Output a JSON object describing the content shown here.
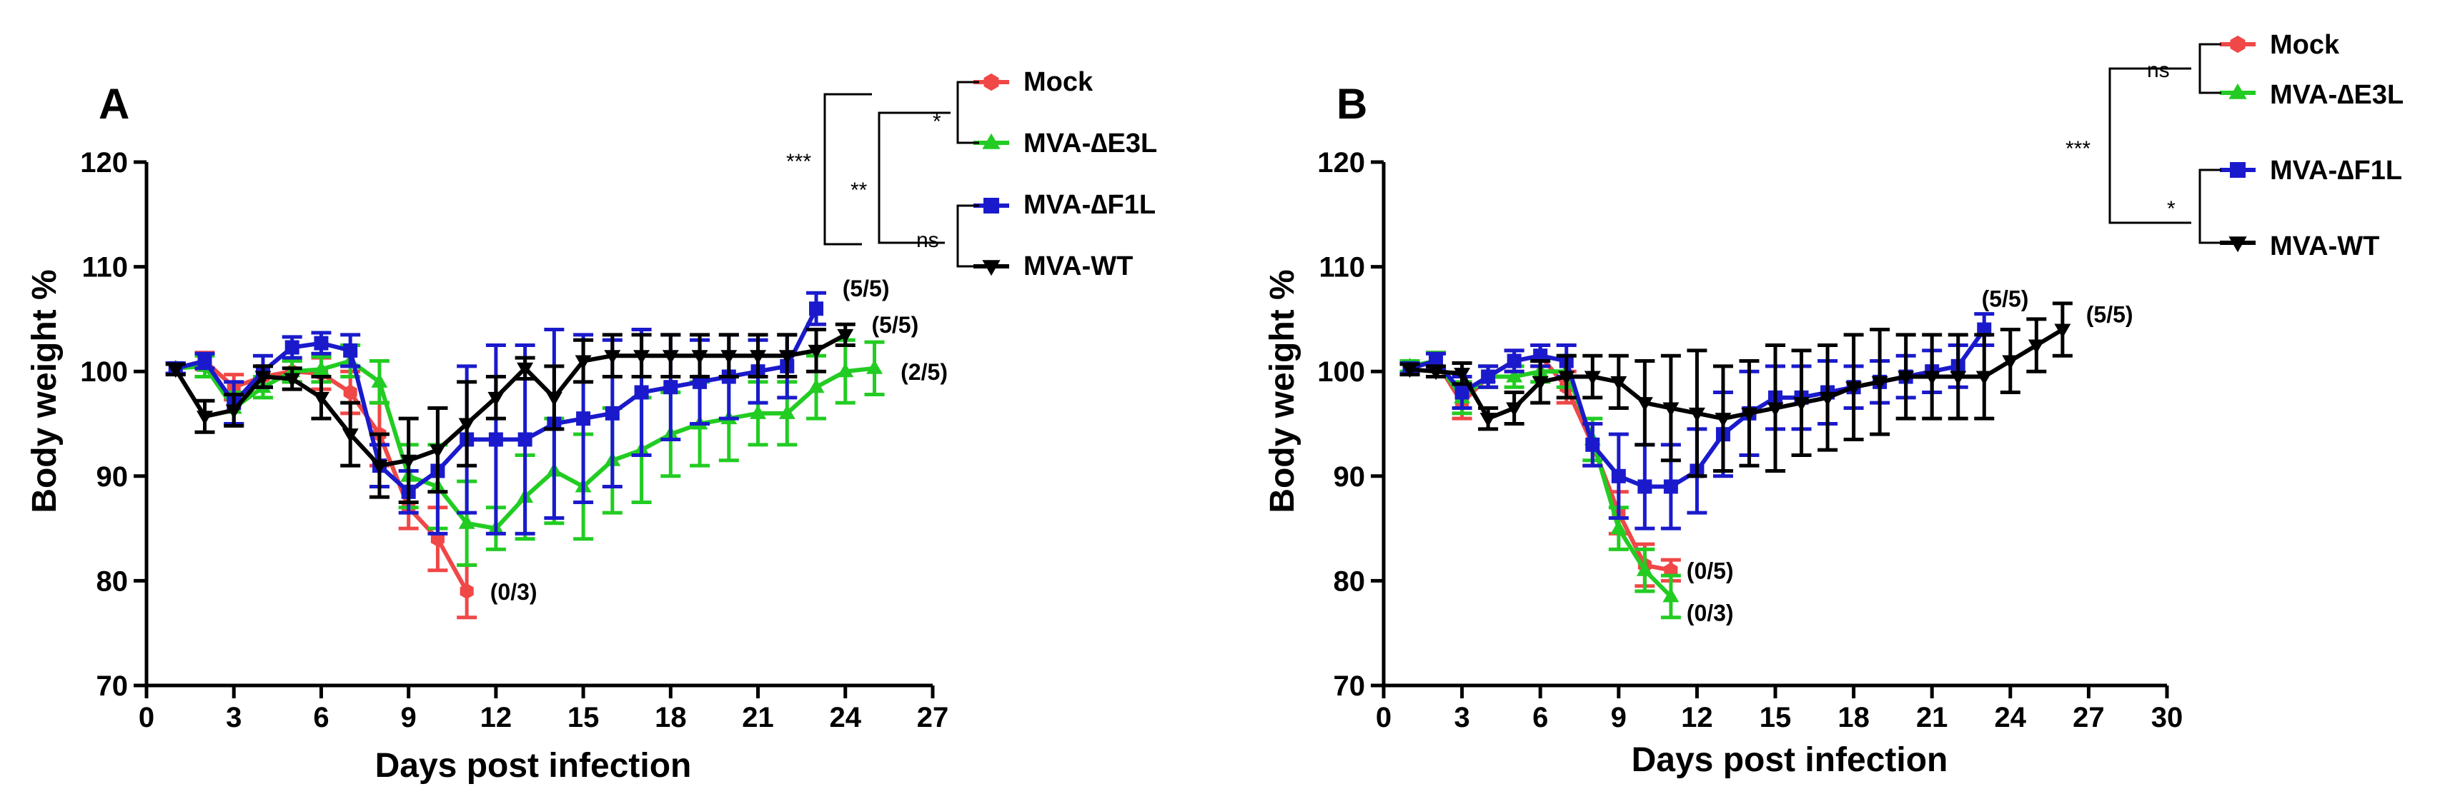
{
  "colors": {
    "mock": "#f04747",
    "e3l": "#22cc22",
    "f1l": "#1a1acc",
    "wt": "#000000"
  },
  "chart_data": [
    {
      "panel": "A",
      "type": "line",
      "xlabel": "Days post infection",
      "ylabel": "Body weight %",
      "xlim": [
        0,
        27
      ],
      "ylim": [
        70,
        120
      ],
      "xticks": [
        0,
        3,
        6,
        9,
        12,
        15,
        18,
        21,
        24,
        27
      ],
      "yticks": [
        70,
        80,
        90,
        100,
        110,
        120
      ],
      "series": [
        {
          "name": "Mock",
          "color": "#f04747",
          "marker": "hexagon",
          "x": [
            1,
            2,
            3,
            4,
            5,
            6,
            7,
            8,
            9,
            10,
            11
          ],
          "y": [
            100.3,
            101,
            98.5,
            99.5,
            100,
            99.8,
            98,
            94,
            87,
            84,
            79
          ],
          "err": [
            0.5,
            0.8,
            1.2,
            1,
            1,
            1.5,
            2,
            3,
            2,
            3,
            2.5
          ]
        },
        {
          "name": "MVA-∆E3L",
          "color": "#22cc22",
          "marker": "triangle-up",
          "x": [
            1,
            2,
            3,
            4,
            5,
            6,
            7,
            8,
            9,
            10,
            11,
            12,
            13,
            14,
            15,
            16,
            17,
            18,
            19,
            20,
            21,
            22,
            23,
            24,
            25
          ],
          "y": [
            100.3,
            100.5,
            96.5,
            98.5,
            100,
            100.2,
            101,
            99,
            90,
            89,
            85.5,
            85,
            88,
            90.5,
            89,
            91.5,
            92.5,
            94,
            95,
            95.5,
            96,
            96,
            98.5,
            100,
            100.3
          ],
          "err": [
            0.5,
            1,
            1.5,
            1,
            1,
            1.2,
            1.5,
            2,
            3,
            4,
            4,
            2,
            4,
            5,
            5,
            5,
            5,
            4,
            4,
            4,
            3,
            3,
            3,
            3,
            2.5
          ]
        },
        {
          "name": "MVA-∆F1L",
          "color": "#1a1acc",
          "marker": "square",
          "x": [
            1,
            2,
            3,
            4,
            5,
            6,
            7,
            8,
            9,
            10,
            11,
            12,
            13,
            14,
            15,
            16,
            17,
            18,
            19,
            20,
            21,
            22,
            23
          ],
          "y": [
            100.3,
            101,
            97,
            100,
            102.3,
            102.7,
            102,
            91,
            88.5,
            90.5,
            93.5,
            93.5,
            93.5,
            95,
            95.5,
            96,
            98,
            98.5,
            99,
            99.5,
            100,
            100.5,
            106
          ],
          "err": [
            0.5,
            0.7,
            2,
            1.5,
            1,
            1,
            1.5,
            2,
            2,
            6,
            7,
            9,
            9,
            9,
            8,
            7,
            6,
            5,
            4,
            4,
            3,
            3,
            1.5
          ]
        },
        {
          "name": "MVA-WT",
          "color": "#000000",
          "marker": "triangle-down",
          "x": [
            1,
            2,
            3,
            4,
            5,
            6,
            7,
            8,
            9,
            10,
            11,
            12,
            13,
            14,
            15,
            16,
            17,
            18,
            19,
            20,
            21,
            22,
            23,
            24
          ],
          "y": [
            100.2,
            95.7,
            96.3,
            99.5,
            99.3,
            97.5,
            94,
            91,
            91.5,
            92.5,
            95,
            97.5,
            100.3,
            97.5,
            101,
            101.5,
            101.5,
            101.5,
            101.5,
            101.5,
            101.5,
            101.5,
            102,
            103.5
          ],
          "err": [
            0.5,
            1.5,
            1.5,
            1,
            1,
            2,
            3,
            3,
            4,
            4,
            4,
            2,
            1,
            3,
            2,
            2,
            2,
            2,
            2,
            2,
            2,
            2,
            2,
            1
          ]
        }
      ],
      "annotations": [
        {
          "text": "(0/3)",
          "x": 11.8,
          "y": 79
        },
        {
          "text": "(5/5)",
          "x": 23.9,
          "y": 108
        },
        {
          "text": "(5/5)",
          "x": 24.9,
          "y": 104.5
        },
        {
          "text": "(2/5)",
          "x": 25.9,
          "y": 100
        }
      ],
      "legend": {
        "position": "top-right",
        "entries": [
          "Mock",
          "MVA-∆E3L",
          "MVA-∆F1L",
          "MVA-WT"
        ]
      },
      "significance": [
        "*",
        "**",
        "***",
        "ns"
      ]
    },
    {
      "panel": "B",
      "type": "line",
      "xlabel": "Days post infection",
      "ylabel": "Body weight %",
      "xlim": [
        0,
        30
      ],
      "ylim": [
        70,
        120
      ],
      "xticks": [
        0,
        3,
        6,
        9,
        12,
        15,
        18,
        21,
        24,
        27,
        30
      ],
      "yticks": [
        70,
        80,
        90,
        100,
        110,
        120
      ],
      "series": [
        {
          "name": "Mock",
          "color": "#f04747",
          "marker": "hexagon",
          "x": [
            1,
            2,
            3,
            4,
            5,
            6,
            7,
            8,
            9,
            10,
            11
          ],
          "y": [
            100.3,
            101,
            97,
            99.5,
            101,
            101.5,
            98.5,
            93,
            86.5,
            81.5,
            81
          ],
          "err": [
            0.5,
            0.8,
            1.5,
            1,
            1,
            1,
            1.5,
            2,
            2,
            2,
            1
          ]
        },
        {
          "name": "MVA-∆E3L",
          "color": "#22cc22",
          "marker": "triangle-up",
          "x": [
            1,
            2,
            3,
            4,
            5,
            6,
            7,
            8,
            9,
            10,
            11
          ],
          "y": [
            100.5,
            101,
            97.5,
            99.5,
            99.5,
            100,
            100,
            93.5,
            85,
            81,
            78.5
          ],
          "err": [
            0.5,
            0.8,
            1.5,
            1,
            1,
            1,
            1.5,
            2,
            2,
            2,
            2
          ]
        },
        {
          "name": "MVA-∆F1L",
          "color": "#1a1acc",
          "marker": "square",
          "x": [
            1,
            2,
            3,
            4,
            5,
            6,
            7,
            8,
            9,
            10,
            11,
            12,
            13,
            14,
            15,
            16,
            17,
            18,
            19,
            20,
            21,
            22,
            23
          ],
          "y": [
            100.3,
            101,
            98,
            99.5,
            101,
            101.5,
            101,
            93,
            90,
            89,
            89,
            90.5,
            94,
            96,
            97.5,
            97.5,
            98,
            98.5,
            99,
            99.5,
            100,
            100.5,
            104
          ],
          "err": [
            0.5,
            0.7,
            1.5,
            1,
            1,
            1,
            1.5,
            2,
            4,
            4,
            4,
            4,
            4,
            4,
            3,
            3,
            3,
            2,
            2,
            2,
            2,
            2,
            1.5
          ]
        },
        {
          "name": "MVA-WT",
          "color": "#000000",
          "marker": "triangle-down",
          "x": [
            1,
            2,
            3,
            4,
            5,
            6,
            7,
            8,
            9,
            10,
            11,
            12,
            13,
            14,
            15,
            16,
            17,
            18,
            19,
            20,
            21,
            22,
            23,
            24,
            25,
            26
          ],
          "y": [
            100.2,
            100,
            99.8,
            95.5,
            96.5,
            99,
            99.5,
            99.5,
            99,
            97,
            96.5,
            96,
            95.5,
            96,
            96.5,
            97,
            97.5,
            98.5,
            99,
            99.5,
            99.5,
            99.5,
            99.5,
            101,
            102.5,
            104
          ],
          "err": [
            0.5,
            0.5,
            1,
            1,
            1.5,
            2,
            2,
            2,
            2.5,
            4,
            5,
            6,
            5,
            5,
            6,
            5,
            5,
            5,
            5,
            4,
            4,
            4,
            4,
            3,
            2.5,
            2.5
          ]
        }
      ],
      "annotations": [
        {
          "text": "(0/5)",
          "x": 11.6,
          "y": 81
        },
        {
          "text": "(0/3)",
          "x": 11.6,
          "y": 77
        },
        {
          "text": "(5/5)",
          "x": 22.9,
          "y": 107
        },
        {
          "text": "(5/5)",
          "x": 26.9,
          "y": 105.5
        }
      ],
      "legend": {
        "position": "top-right",
        "entries": [
          "Mock",
          "MVA-∆E3L",
          "MVA-∆F1L",
          "MVA-WT"
        ]
      },
      "significance": [
        "ns",
        "***",
        "*"
      ]
    }
  ]
}
